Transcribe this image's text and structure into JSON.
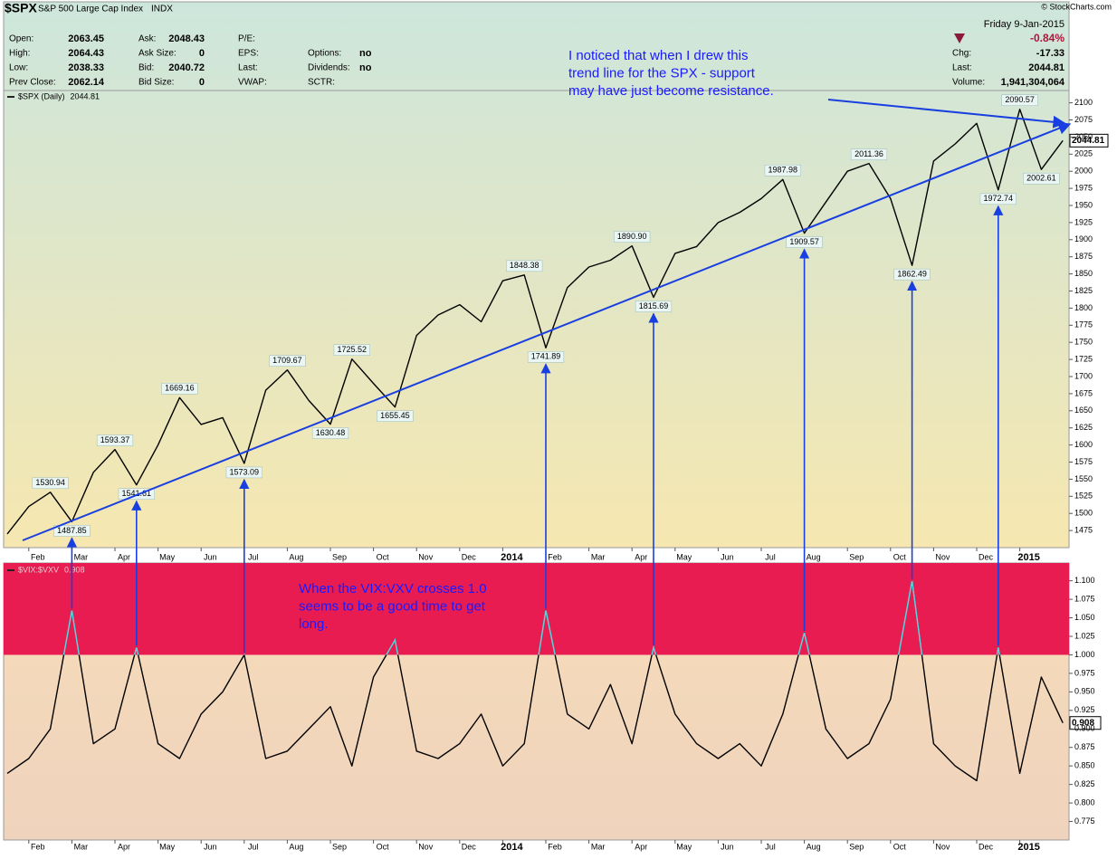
{
  "header": {
    "symbol": "$SPX",
    "name": "S&P 500 Large Cap Index",
    "exchange": "INDX",
    "source": "© StockCharts.com",
    "date": "Friday  9-Jan-2015",
    "change_pct": "-0.84%",
    "quote_columns": [
      [
        {
          "label": "Open:",
          "value": "2063.45"
        },
        {
          "label": "High:",
          "value": "2064.43"
        },
        {
          "label": "Low:",
          "value": "2038.33"
        },
        {
          "label": "Prev Close:",
          "value": "2062.14"
        }
      ],
      [
        {
          "label": "Ask:",
          "value": "2048.43"
        },
        {
          "label": "Ask Size:",
          "value": "0"
        },
        {
          "label": "Bid:",
          "value": "2040.72"
        },
        {
          "label": "Bid Size:",
          "value": "0"
        }
      ],
      [
        {
          "label": "P/E:"
        },
        {
          "label": "EPS:"
        },
        {
          "label": "Last:"
        },
        {
          "label": "VWAP:"
        }
      ],
      [
        {
          "label": "Options:",
          "value": "no"
        },
        {
          "label": "Dividends:",
          "value": "no"
        },
        {
          "label": "SCTR:"
        }
      ],
      [
        {
          "label": "Chg:",
          "value": "-17.33"
        },
        {
          "label": "Last:",
          "value": "2044.81"
        },
        {
          "label": "Volume:",
          "value": "1,941,304,064"
        }
      ]
    ]
  },
  "chart_data": [
    {
      "type": "line",
      "annotation": [
        "I noticed that when I drew this",
        "trend line for the SPX  - support",
        "may have just become resistance."
      ],
      "categories": [
        null,
        "Feb",
        null,
        "Mar",
        null,
        "Apr",
        null,
        "May",
        null,
        "Jun",
        null,
        "Jul",
        null,
        "Aug",
        null,
        "Sep",
        null,
        "Oct",
        null,
        "Nov",
        null,
        "Dec",
        null,
        "2014",
        null,
        "Feb",
        null,
        "Mar",
        null,
        "Apr",
        null,
        "May",
        null,
        "Jun",
        null,
        "Jul",
        null,
        "Aug",
        null,
        "Sep",
        null,
        "Oct",
        null,
        "Nov",
        null,
        "Dec",
        null,
        "2015",
        null,
        null
      ],
      "series": [
        {
          "name": "$SPX (Daily)",
          "color": "#000000",
          "values": [
            1470,
            1510,
            1530.94,
            1487.85,
            1560,
            1593.37,
            1541.61,
            1600,
            1669.16,
            1630,
            1640,
            1573.09,
            1680,
            1709.67,
            1665,
            1630.48,
            1725.52,
            1690,
            1655.45,
            1760,
            1790,
            1805,
            1780,
            1840,
            1848.38,
            1741.89,
            1830,
            1860,
            1870,
            1890.9,
            1815.69,
            1880,
            1890,
            1925,
            1940,
            1960,
            1987.98,
            1909.57,
            1955,
            2000,
            2011.36,
            1960,
            1862.49,
            2015,
            2040,
            2070,
            1972.74,
            2090.57,
            2002.61,
            2044.81
          ],
          "value_labels": [
            null,
            null,
            "1530.94",
            "1487.85",
            null,
            "1593.37",
            "1541.61",
            null,
            "1669.16",
            null,
            null,
            "1573.09",
            null,
            "1709.67",
            null,
            "1630.48",
            "1725.52",
            null,
            "1655.45",
            null,
            null,
            null,
            null,
            null,
            "1848.38",
            "1741.89",
            null,
            null,
            null,
            "1890.90",
            "1815.69",
            null,
            null,
            null,
            null,
            null,
            "1987.98",
            "1909.57",
            null,
            null,
            "2011.36",
            null,
            "1862.49",
            null,
            null,
            null,
            "1972.74",
            "2090.57",
            "2002.61",
            "2044.81"
          ]
        }
      ],
      "ylim": [
        1450,
        2118
      ],
      "yticks": [
        1475,
        1500,
        1525,
        1550,
        1575,
        1600,
        1625,
        1650,
        1675,
        1700,
        1725,
        1750,
        1775,
        1800,
        1825,
        1850,
        1875,
        1900,
        1925,
        1950,
        1975,
        2000,
        2025,
        2050,
        2075,
        2100
      ],
      "grid": false
    },
    {
      "type": "line",
      "annotation": [
        "When the VIX:VXV crosses 1.0",
        "seems to be a good time to get",
        "long."
      ],
      "categories": [
        null,
        "Feb",
        null,
        "Mar",
        null,
        "Apr",
        null,
        "May",
        null,
        "Jun",
        null,
        "Jul",
        null,
        "Aug",
        null,
        "Sep",
        null,
        "Oct",
        null,
        "Nov",
        null,
        "Dec",
        null,
        "2014",
        null,
        "Feb",
        null,
        "Mar",
        null,
        "Apr",
        null,
        "May",
        null,
        "Jun",
        null,
        "Jul",
        null,
        "Aug",
        null,
        "Sep",
        null,
        "Oct",
        null,
        "Nov",
        null,
        "Dec",
        null,
        "2015",
        null,
        null
      ],
      "series": [
        {
          "name": "$VIX:$VXV",
          "color": "#000000",
          "highlight_color": "#5fd0dc",
          "values": [
            0.84,
            0.86,
            0.9,
            1.06,
            0.88,
            0.9,
            1.01,
            0.88,
            0.86,
            0.92,
            0.95,
            1.0,
            0.86,
            0.87,
            0.9,
            0.93,
            0.85,
            0.97,
            1.02,
            0.87,
            0.86,
            0.88,
            0.92,
            0.85,
            0.88,
            1.06,
            0.92,
            0.9,
            0.96,
            0.88,
            1.01,
            0.92,
            0.88,
            0.86,
            0.88,
            0.85,
            0.92,
            1.03,
            0.9,
            0.86,
            0.88,
            0.94,
            1.1,
            0.88,
            0.85,
            0.83,
            1.01,
            0.84,
            0.97,
            0.908
          ]
        }
      ],
      "band": {
        "from": 1,
        "color": "#e81c50"
      },
      "ylim": [
        0.75,
        1.124
      ],
      "yticks": [
        {
          "value": 0.775,
          "label": "0.775"
        },
        {
          "value": 0.8,
          "label": "0.800"
        },
        {
          "value": 0.825,
          "label": "0.825"
        },
        {
          "value": 0.85,
          "label": "0.850"
        },
        {
          "value": 0.875,
          "label": "0.875"
        },
        {
          "value": 0.9,
          "label": "0.900"
        },
        {
          "value": 0.925,
          "label": "0.925"
        },
        {
          "value": 0.95,
          "label": "0.950"
        },
        {
          "value": 0.975,
          "label": "0.975"
        },
        {
          "value": 1,
          "label": "1.000"
        },
        {
          "value": 1.025,
          "label": "1.025"
        },
        {
          "value": 1.05,
          "label": "1.050"
        },
        {
          "value": 1.075,
          "label": "1.075"
        },
        {
          "value": 1.1,
          "label": "1.100"
        }
      ],
      "grid": false
    }
  ]
}
